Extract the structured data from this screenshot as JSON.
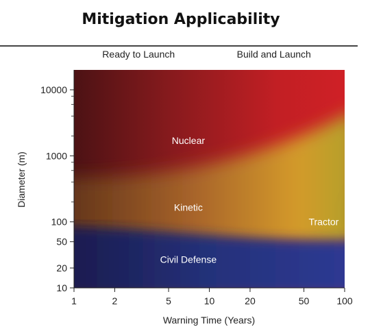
{
  "chart_data": {
    "type": "heatmap",
    "title": "Mitigation Applicability",
    "xlabel": "Warning Time (Years)",
    "ylabel": "Diameter (m)",
    "xscale": "log",
    "yscale": "log",
    "xlim": [
      1,
      100
    ],
    "ylim": [
      10,
      20000
    ],
    "x_ticks": [
      {
        "value": 1,
        "label": "1"
      },
      {
        "value": 2,
        "label": "2"
      },
      {
        "value": 5,
        "label": "5"
      },
      {
        "value": 10,
        "label": "10"
      },
      {
        "value": 20,
        "label": "20"
      },
      {
        "value": 50,
        "label": "50"
      },
      {
        "value": 100,
        "label": "100"
      }
    ],
    "y_ticks": [
      {
        "value": 10,
        "label": "10"
      },
      {
        "value": 20,
        "label": "20"
      },
      {
        "value": 50,
        "label": "50"
      },
      {
        "value": 100,
        "label": "100"
      },
      {
        "value": 1000,
        "label": "1000"
      },
      {
        "value": 10000,
        "label": "10000"
      }
    ],
    "top_labels": [
      {
        "text": "Ready to Launch",
        "x": 3
      },
      {
        "text": "Build and Launch",
        "x": 30
      }
    ],
    "regions": [
      {
        "label": "Nuclear",
        "x": 7,
        "y": 1700,
        "color": "#c21e22"
      },
      {
        "label": "Kinetic",
        "x": 7,
        "y": 165,
        "color": "#b36a28"
      },
      {
        "label": "Tractor",
        "x": 70,
        "y": 100,
        "color": "#1c8a3a"
      },
      {
        "label": "Civil Defense",
        "x": 7,
        "y": 27,
        "color": "#28307a"
      }
    ]
  }
}
